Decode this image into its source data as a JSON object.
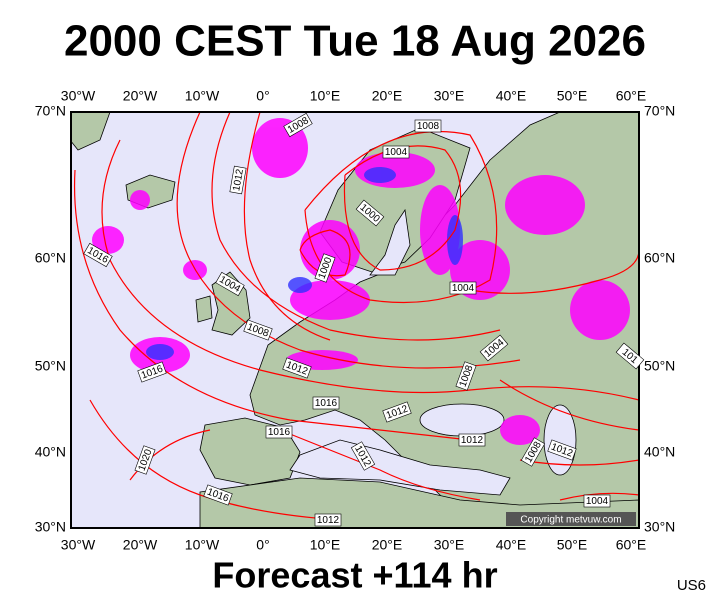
{
  "header": {
    "title": "2000 CEST Tue 18 Aug 2026"
  },
  "map": {
    "lon_labels": [
      "30°W",
      "20°W",
      "10°W",
      "0°",
      "10°E",
      "20°E",
      "30°E",
      "40°E",
      "50°E",
      "60°E"
    ],
    "lat_labels": [
      "70°N",
      "60°N",
      "50°N",
      "40°N",
      "30°N"
    ],
    "isobar_labels": [
      "1008",
      "1008",
      "1004",
      "1012",
      "1000",
      "1016",
      "1000",
      "1004",
      "1004",
      "1008",
      "1004",
      "1016",
      "1012",
      "1008",
      "1016",
      "1012",
      "1016",
      "1012",
      "1008",
      "1012",
      "1012",
      "1020",
      "1016",
      "1004",
      "1012",
      "101"
    ],
    "copyright": "Copyright metvuw.com"
  },
  "footer": {
    "forecast": "Forecast +114 hr",
    "code": "US6"
  }
}
